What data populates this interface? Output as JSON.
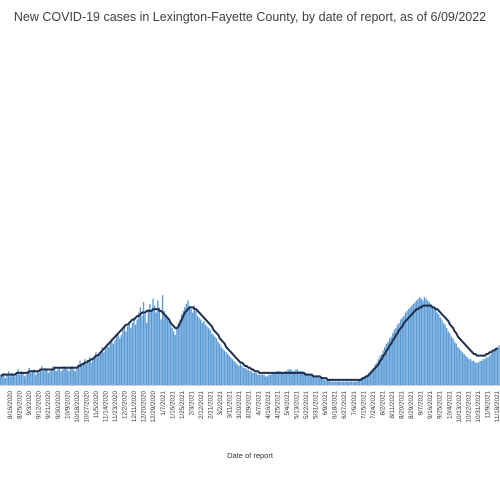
{
  "chart_data": {
    "type": "bar",
    "title": "New COVID-19 cases in Lexington-Fayette County, by date of report, as of 6/09/2022",
    "xlabel": "Date of report",
    "ylabel": "",
    "grid": false,
    "legend": "none",
    "tick_labels": [
      "8/16/2020",
      "8/25/2020",
      "9/3/2020",
      "9/12/2020",
      "9/21/2020",
      "9/30/2020",
      "10/9/2020",
      "10/18/2020",
      "10/27/2020",
      "11/5/2020",
      "11/14/2020",
      "11/23/2020",
      "12/2/2020",
      "12/11/2020",
      "12/20/2020",
      "12/29/2020",
      "1/7/2021",
      "1/16/2021",
      "1/25/2021",
      "2/3/2021",
      "2/12/2021",
      "2/21/2021",
      "3/2/2021",
      "3/11/2021",
      "3/20/2021",
      "3/29/2021",
      "4/7/2021",
      "4/16/2021",
      "4/25/2021",
      "5/4/2021",
      "5/13/2021",
      "5/22/2021",
      "5/31/2021",
      "6/9/2021",
      "6/18/2021",
      "6/27/2021",
      "7/6/2021",
      "7/15/2021",
      "7/24/2021",
      "8/2/2021",
      "8/11/2021",
      "8/20/2021",
      "8/29/2021",
      "9/7/2021",
      "9/16/2021",
      "9/25/2021",
      "10/4/2021",
      "10/13/2021",
      "10/22/2021",
      "10/31/2021",
      "11/9/2021",
      "11/18/2021"
    ],
    "series": [
      {
        "kind": "bar",
        "values": [
          5,
          6,
          7,
          4,
          6,
          8,
          5,
          7,
          6,
          5,
          7,
          9,
          6,
          8,
          7,
          5,
          6,
          8,
          10,
          7,
          8,
          9,
          6,
          8,
          7,
          9,
          11,
          8,
          10,
          9,
          7,
          8,
          9,
          11,
          10,
          8,
          9,
          10,
          8,
          9,
          11,
          10,
          9,
          8,
          10,
          11,
          9,
          8,
          10,
          12,
          14,
          11,
          13,
          15,
          12,
          14,
          16,
          13,
          15,
          17,
          19,
          16,
          18,
          20,
          22,
          19,
          21,
          24,
          22,
          25,
          27,
          24,
          26,
          28,
          30,
          27,
          29,
          32,
          35,
          31,
          34,
          37,
          33,
          36,
          39,
          35,
          38,
          42,
          45,
          40,
          48,
          41,
          36,
          44,
          47,
          43,
          50,
          46,
          42,
          49,
          45,
          38,
          52,
          43,
          41,
          39,
          37,
          35,
          33,
          31,
          29,
          33,
          36,
          38,
          41,
          43,
          45,
          47,
          49,
          46,
          44,
          42,
          46,
          43,
          40,
          39,
          38,
          36,
          37,
          35,
          34,
          33,
          32,
          30,
          29,
          28,
          27,
          25,
          24,
          22,
          21,
          20,
          19,
          18,
          17,
          16,
          15,
          14,
          13,
          12,
          11,
          12,
          11,
          10,
          10,
          9,
          9,
          8,
          8,
          7,
          7,
          7,
          6,
          6,
          6,
          6,
          6,
          5,
          5,
          6,
          6,
          7,
          7,
          7,
          8,
          8,
          8,
          7,
          7,
          8,
          8,
          9,
          9,
          9,
          8,
          8,
          9,
          9,
          8,
          8,
          8,
          7,
          7,
          7,
          6,
          6,
          6,
          5,
          5,
          5,
          5,
          4,
          4,
          4,
          3,
          3,
          3,
          3,
          2,
          2,
          2,
          2,
          2,
          2,
          2,
          2,
          2,
          2,
          2,
          2,
          2,
          2,
          2,
          2,
          2,
          3,
          3,
          4,
          4,
          5,
          5,
          6,
          7,
          8,
          9,
          10,
          12,
          13,
          15,
          17,
          18,
          20,
          22,
          24,
          25,
          27,
          28,
          30,
          32,
          33,
          35,
          36,
          38,
          39,
          40,
          42,
          43,
          44,
          45,
          46,
          47,
          48,
          49,
          50,
          51,
          50,
          49,
          51,
          50,
          49,
          48,
          47,
          46,
          45,
          44,
          42,
          41,
          39,
          38,
          36,
          35,
          33,
          31,
          30,
          28,
          27,
          25,
          24,
          22,
          21,
          20,
          19,
          18,
          17,
          16,
          15,
          15,
          14,
          14,
          13,
          13,
          13,
          14,
          14,
          15,
          15,
          16,
          16,
          17,
          18,
          19,
          20,
          21,
          22,
          23
        ]
      },
      {
        "kind": "line",
        "color": "#1f2d4e",
        "values": [
          5,
          6,
          6,
          6,
          6,
          6,
          6,
          6,
          6,
          6,
          7,
          7,
          7,
          7,
          7,
          7,
          7,
          7,
          8,
          8,
          8,
          8,
          8,
          8,
          8,
          9,
          9,
          9,
          9,
          9,
          9,
          9,
          9,
          9,
          10,
          10,
          10,
          10,
          10,
          10,
          10,
          10,
          10,
          10,
          10,
          10,
          10,
          10,
          10,
          11,
          11,
          12,
          12,
          13,
          13,
          14,
          14,
          15,
          15,
          16,
          17,
          17,
          18,
          19,
          20,
          21,
          22,
          23,
          24,
          25,
          26,
          27,
          28,
          29,
          30,
          31,
          32,
          33,
          34,
          35,
          35,
          36,
          37,
          38,
          38,
          39,
          40,
          40,
          41,
          42,
          42,
          42,
          43,
          43,
          43,
          43,
          44,
          44,
          44,
          44,
          43,
          43,
          42,
          41,
          40,
          39,
          38,
          36,
          35,
          34,
          33,
          33,
          34,
          36,
          38,
          40,
          42,
          43,
          44,
          45,
          45,
          45,
          44,
          44,
          43,
          42,
          41,
          40,
          39,
          38,
          37,
          36,
          35,
          34,
          32,
          31,
          30,
          29,
          27,
          26,
          25,
          24,
          22,
          21,
          20,
          19,
          18,
          17,
          16,
          15,
          14,
          13,
          13,
          12,
          11,
          11,
          10,
          10,
          9,
          9,
          8,
          8,
          8,
          7,
          7,
          7,
          7,
          7,
          7,
          7,
          7,
          7,
          7,
          7,
          7,
          7,
          7,
          7,
          7,
          7,
          7,
          7,
          7,
          7,
          7,
          7,
          7,
          7,
          7,
          7,
          7,
          7,
          6,
          6,
          6,
          6,
          6,
          5,
          5,
          5,
          5,
          5,
          4,
          4,
          4,
          4,
          3,
          3,
          3,
          3,
          3,
          3,
          3,
          3,
          3,
          3,
          3,
          3,
          3,
          3,
          3,
          3,
          3,
          3,
          3,
          3,
          3,
          3,
          4,
          4,
          5,
          5,
          6,
          7,
          8,
          9,
          10,
          11,
          12,
          14,
          15,
          17,
          18,
          20,
          21,
          23,
          24,
          26,
          27,
          29,
          30,
          32,
          33,
          34,
          36,
          37,
          38,
          39,
          40,
          41,
          42,
          43,
          44,
          44,
          45,
          45,
          46,
          46,
          46,
          46,
          46,
          46,
          45,
          45,
          44,
          44,
          43,
          42,
          41,
          40,
          39,
          38,
          37,
          35,
          34,
          33,
          31,
          30,
          28,
          27,
          26,
          25,
          24,
          23,
          22,
          21,
          20,
          19,
          18,
          18,
          17,
          17,
          17,
          17,
          17,
          17,
          18,
          18,
          19,
          19,
          20,
          20,
          21,
          21
        ]
      }
    ]
  },
  "colors": {
    "bar": "#5b9bd5",
    "line": "#1f2d4e"
  }
}
